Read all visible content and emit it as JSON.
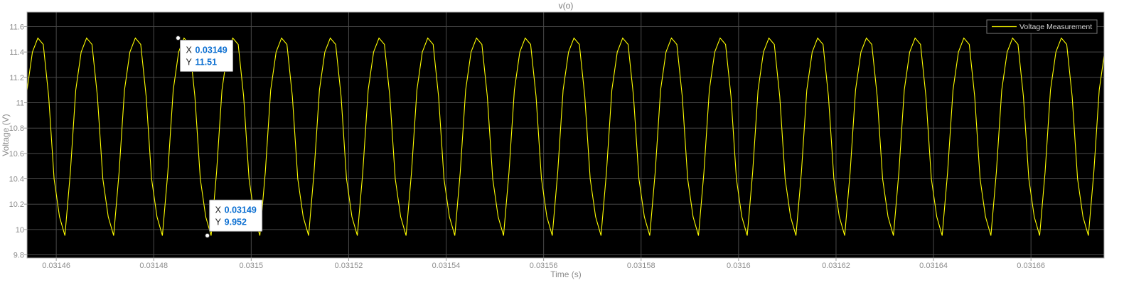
{
  "chart_data": {
    "type": "line",
    "title": "v(o)",
    "xlabel": "Time (s)",
    "ylabel": "Voltage (V)",
    "xlim": [
      0.031454,
      0.031675
    ],
    "ylim": [
      9.775,
      11.715
    ],
    "xticks": [
      0.03146,
      0.03148,
      0.0315,
      0.03152,
      0.03154,
      0.03156,
      0.03158,
      0.0316,
      0.03162,
      0.03164,
      0.03166
    ],
    "xtick_labels": [
      "0.03146",
      "0.03148",
      "0.0315",
      "0.03152",
      "0.03154",
      "0.03156",
      "0.03158",
      "0.0316",
      "0.03162",
      "0.03164",
      "0.03166"
    ],
    "yticks": [
      9.8,
      10,
      10.2,
      10.4,
      10.6,
      10.8,
      11,
      11.2,
      11.4,
      11.6
    ],
    "ytick_labels": [
      "9.8",
      "10",
      "10.2",
      "10.4",
      "10.6",
      "10.8",
      "11",
      "11.2",
      "11.4",
      "11.6"
    ],
    "grid": true,
    "legend_position": "top-right",
    "series": [
      {
        "name": "Voltage Measurement",
        "color": "#ffff00",
        "period": 1e-05,
        "phase_at_xmin": 0.0,
        "samples_per_period": 9,
        "cycle_values": [
          11.1,
          11.4,
          11.51,
          11.46,
          11.05,
          10.4,
          10.1,
          9.952,
          10.45
        ]
      }
    ],
    "annotations": [
      {
        "x_label": "X",
        "x_value": "0.03149",
        "y_label": "Y",
        "y_value": "11.51",
        "x": 0.031485,
        "y": 11.51
      },
      {
        "x_label": "X",
        "x_value": "0.03149",
        "y_label": "Y",
        "y_value": "9.952",
        "x": 0.031491,
        "y": 9.952
      }
    ]
  },
  "colors": {
    "figure_background": "#ffffff",
    "plot_background": "#000000",
    "grid": "#4a4a4a",
    "legend_border": "#7a7a7a"
  }
}
